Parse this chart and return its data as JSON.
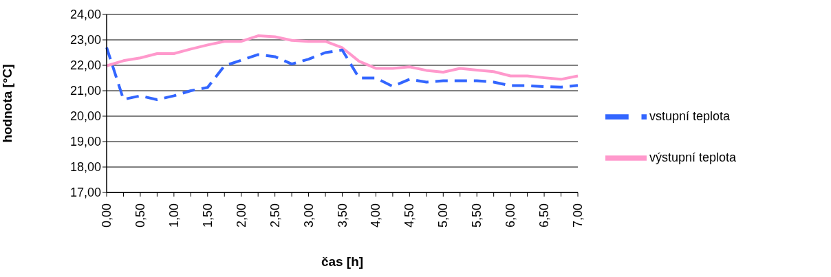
{
  "chart_data": {
    "type": "line",
    "xlabel": "čas [h]",
    "ylabel": "hodnota [°C]",
    "categories": [
      "0,00",
      null,
      "0,50",
      null,
      "1,00",
      null,
      "1,50",
      null,
      "2,00",
      null,
      "2,50",
      null,
      "3,00",
      null,
      "3,50",
      null,
      "4,00",
      null,
      "4,50",
      null,
      "5,00",
      null,
      "5,50",
      null,
      "6,00",
      null,
      "6,50",
      null,
      "7,00"
    ],
    "series": [
      {
        "name": "výstupní teplota",
        "color": "#ff99cc",
        "line_style": "solid",
        "values": [
          21.98,
          22.18,
          22.29,
          22.46,
          22.46,
          22.64,
          22.8,
          22.94,
          22.94,
          23.16,
          23.12,
          22.98,
          22.94,
          22.94,
          22.69,
          22.16,
          21.88,
          21.88,
          21.94,
          21.8,
          21.73,
          21.88,
          21.81,
          21.75,
          21.58,
          21.58,
          21.51,
          21.45,
          21.58
        ]
      },
      {
        "name": "vstupní teplota",
        "color": "#3366ff",
        "line_style": "dashed",
        "values": [
          22.7,
          20.66,
          20.8,
          20.65,
          20.8,
          21.0,
          21.13,
          21.98,
          22.2,
          22.42,
          22.34,
          22.05,
          22.24,
          22.5,
          22.6,
          21.5,
          21.5,
          21.17,
          21.45,
          21.34,
          21.39,
          21.39,
          21.39,
          21.34,
          21.2,
          21.2,
          21.16,
          21.14,
          21.21
        ]
      }
    ],
    "ylim": [
      17,
      24
    ],
    "yticks": [
      {
        "value": 17,
        "label": "17,00"
      },
      {
        "value": 18,
        "label": "18,00"
      },
      {
        "value": 19,
        "label": "19,00"
      },
      {
        "value": 20,
        "label": "20,00"
      },
      {
        "value": 21,
        "label": "21,00"
      },
      {
        "value": 22,
        "label": "22,00"
      },
      {
        "value": 23,
        "label": "23,00"
      },
      {
        "value": 24,
        "label": "24,00"
      }
    ],
    "grid": "y",
    "legend": "right",
    "marker": "none"
  }
}
